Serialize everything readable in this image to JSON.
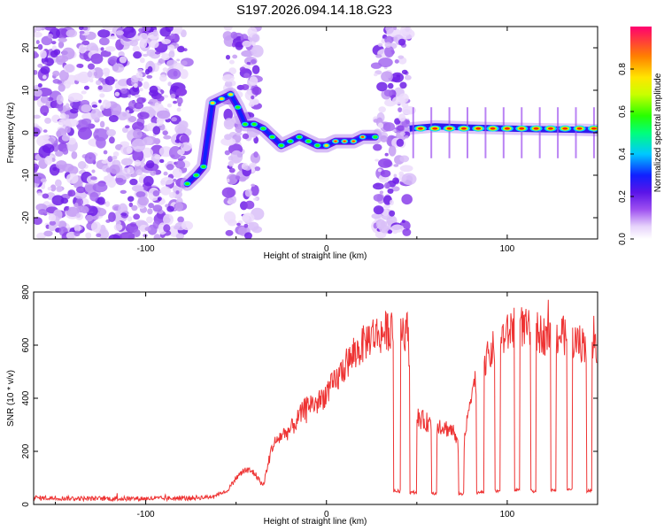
{
  "title": "S197.2026.094.14.18.G23",
  "chart_data": [
    {
      "type": "heatmap",
      "name": "spectrogram",
      "xlabel": "Height of straight line (km)",
      "ylabel": "Frequency (Hz)",
      "xlim": [
        -162,
        150
      ],
      "ylim": [
        -25,
        25
      ],
      "xticks": [
        -100,
        0,
        100
      ],
      "yticks": [
        -20,
        -10,
        0,
        10,
        20
      ],
      "colorbar": {
        "label": "Normalized spectral amplitude",
        "range": [
          0,
          1
        ],
        "ticks": [
          0.0,
          0.2,
          0.4,
          0.6,
          0.8
        ],
        "tick_labels": [
          "0.0",
          "0.2",
          "0.4",
          "0.6",
          "0.8"
        ]
      },
      "noise_regions_km": [
        [
          -162,
          -77
        ],
        [
          -55,
          -38
        ],
        [
          27,
          46
        ]
      ],
      "ridge": {
        "description": "dominant frequency track",
        "x": [
          -77,
          -72,
          -68,
          -63,
          -58,
          -53,
          -49,
          -45,
          -40,
          -35,
          -30,
          -25,
          -20,
          -15,
          -10,
          -5,
          0,
          5,
          10,
          15,
          20,
          27
        ],
        "y": [
          -12,
          -10,
          -8,
          7,
          8,
          9,
          6,
          2,
          2,
          1,
          -1,
          -3,
          -2,
          -1,
          -2,
          -3,
          -3,
          -2,
          -2,
          -2,
          -1,
          -1
        ]
      },
      "stable_line": {
        "x": [
          46,
          60,
          80,
          100,
          120,
          140,
          150
        ],
        "y": [
          1,
          1.5,
          1.2,
          1.0,
          0.8,
          0.7,
          0.6
        ]
      }
    },
    {
      "type": "line",
      "name": "snr",
      "xlabel": "Height of straight line (km)",
      "ylabel": "SNR (10 * v/v)",
      "xlim": [
        -162,
        150
      ],
      "ylim": [
        0,
        800
      ],
      "xticks": [
        -100,
        0,
        100
      ],
      "yticks": [
        0,
        200,
        400,
        600,
        800
      ],
      "color": "#ee3333",
      "series": [
        {
          "name": "SNR",
          "x": [
            -162,
            -130,
            -100,
            -80,
            -65,
            -55,
            -50,
            -45,
            -40,
            -35,
            -30,
            -25,
            -20,
            -15,
            -10,
            -5,
            0,
            5,
            10,
            15,
            20,
            25,
            30,
            35,
            40,
            45,
            48,
            50,
            55,
            60,
            65,
            70,
            75,
            80,
            85,
            90,
            95,
            100,
            105,
            110,
            115,
            120,
            125,
            130,
            135,
            140,
            145,
            150
          ],
          "y": [
            25,
            22,
            22,
            23,
            28,
            50,
            100,
            130,
            120,
            70,
            220,
            260,
            280,
            330,
            380,
            380,
            420,
            460,
            520,
            560,
            600,
            640,
            640,
            660,
            670,
            650,
            360,
            330,
            310,
            310,
            290,
            280,
            160,
            430,
            500,
            560,
            620,
            640,
            690,
            660,
            650,
            640,
            630,
            640,
            620,
            610,
            600,
            600
          ]
        }
      ],
      "dropouts": [
        {
          "x": [
            37,
            41
          ],
          "value": 50
        },
        {
          "x": [
            46,
            50
          ],
          "value": 45
        },
        {
          "x": [
            58,
            61
          ],
          "value": 40
        },
        {
          "x": [
            73,
            76
          ],
          "value": 40
        },
        {
          "x": [
            83,
            87
          ],
          "value": 45
        },
        {
          "x": [
            93,
            96
          ],
          "value": 50
        },
        {
          "x": [
            104,
            107
          ],
          "value": 55
        },
        {
          "x": [
            113,
            116
          ],
          "value": 50
        },
        {
          "x": [
            124,
            127
          ],
          "value": 55
        },
        {
          "x": [
            133,
            136
          ],
          "value": 55
        },
        {
          "x": [
            144,
            147
          ],
          "value": 50
        }
      ]
    }
  ]
}
